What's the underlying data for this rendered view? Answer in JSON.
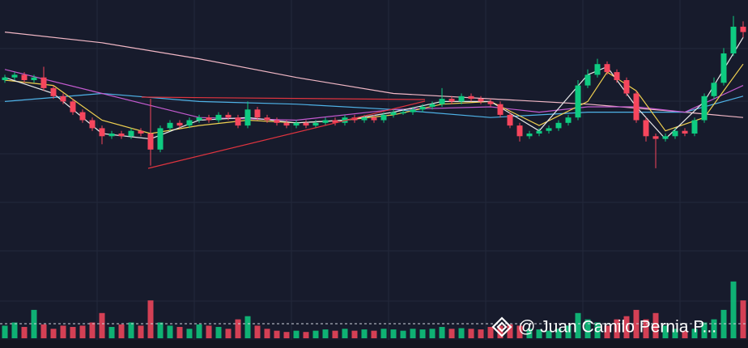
{
  "chart_data": {
    "type": "candlestick",
    "watermark": "@ Juan Camilo Pernia P...",
    "up_color": "#0ecb81",
    "down_color": "#f6465d",
    "ylim": [
      0,
      100
    ],
    "vlim": [
      0,
      100
    ],
    "open": [
      70,
      71,
      72,
      70,
      71,
      67,
      64,
      62,
      58,
      55,
      52,
      49,
      50,
      49,
      51,
      50,
      44,
      52,
      54,
      53,
      55,
      56,
      55,
      57,
      56,
      53,
      59,
      56,
      55,
      54,
      53,
      54,
      53,
      54,
      55,
      54,
      56,
      55,
      56,
      55,
      57,
      58,
      58,
      59,
      60,
      61,
      63,
      62,
      64,
      63,
      62,
      61,
      57,
      53,
      49,
      50,
      51,
      52,
      54,
      56,
      68,
      72,
      76,
      73,
      70,
      65,
      55,
      49,
      48,
      49,
      51,
      50,
      55,
      64,
      69,
      80,
      90
    ],
    "high": [
      72,
      73,
      73,
      72,
      75,
      68,
      65,
      63,
      59,
      56,
      53,
      51,
      51,
      52,
      52,
      63,
      53,
      55,
      55,
      56,
      57,
      57,
      58,
      58,
      57,
      62,
      60,
      57,
      56,
      55,
      55,
      55,
      55,
      56,
      56,
      57,
      57,
      57,
      57,
      58,
      59,
      59,
      60,
      61,
      62,
      67,
      64,
      65,
      65,
      64,
      63,
      62,
      58,
      54,
      51,
      52,
      53,
      55,
      57,
      70,
      74,
      78,
      77,
      74,
      71,
      66,
      56,
      50,
      50,
      52,
      52,
      56,
      65,
      71,
      82,
      94,
      92
    ],
    "low": [
      69,
      70,
      69,
      69,
      66,
      63,
      61,
      57,
      54,
      51,
      46,
      48,
      48,
      48,
      49,
      38,
      43,
      51,
      52,
      52,
      54,
      54,
      54,
      55,
      52,
      52,
      55,
      54,
      53,
      52,
      52,
      52,
      52,
      53,
      53,
      53,
      54,
      54,
      54,
      54,
      56,
      57,
      57,
      58,
      59,
      60,
      61,
      61,
      62,
      61,
      60,
      56,
      52,
      47,
      48,
      49,
      50,
      51,
      53,
      55,
      67,
      71,
      72,
      69,
      64,
      54,
      47,
      37,
      47,
      48,
      49,
      49,
      54,
      63,
      68,
      79,
      86
    ],
    "close": [
      71,
      72,
      70,
      71,
      67,
      64,
      62,
      58,
      55,
      52,
      49,
      50,
      49,
      51,
      50,
      44,
      52,
      54,
      53,
      55,
      56,
      55,
      57,
      56,
      53,
      59,
      56,
      55,
      54,
      53,
      54,
      53,
      54,
      55,
      54,
      56,
      55,
      56,
      55,
      57,
      58,
      58,
      59,
      60,
      61,
      63,
      62,
      64,
      63,
      62,
      61,
      57,
      53,
      49,
      50,
      51,
      52,
      54,
      56,
      68,
      72,
      76,
      73,
      70,
      65,
      55,
      49,
      48,
      49,
      51,
      50,
      55,
      64,
      69,
      80,
      90,
      88
    ],
    "volume": [
      20,
      25,
      18,
      45,
      22,
      15,
      20,
      18,
      20,
      25,
      40,
      18,
      22,
      25,
      20,
      60,
      25,
      20,
      18,
      15,
      22,
      20,
      18,
      15,
      30,
      35,
      20,
      15,
      12,
      10,
      12,
      10,
      12,
      14,
      12,
      15,
      12,
      14,
      12,
      15,
      14,
      12,
      15,
      14,
      15,
      18,
      15,
      16,
      15,
      14,
      18,
      20,
      22,
      20,
      15,
      14,
      12,
      15,
      20,
      40,
      30,
      25,
      20,
      30,
      35,
      45,
      30,
      40,
      20,
      15,
      12,
      15,
      25,
      30,
      45,
      90,
      60
    ],
    "lines": [
      {
        "color": "#f2b8c6",
        "x": [
          0,
          10,
          20,
          30,
          40,
          50,
          60,
          70,
          76
        ],
        "values": [
          88,
          84,
          78,
          71,
          65,
          63,
          61,
          58,
          56
        ]
      },
      {
        "color": "#4fb3e8",
        "x": [
          0,
          10,
          20,
          30,
          40,
          50,
          60,
          70,
          76
        ],
        "values": [
          62,
          65,
          62,
          61,
          59,
          56,
          58,
          58,
          64
        ]
      },
      {
        "color": "#c45bd0",
        "x": [
          0,
          10,
          20,
          30,
          40,
          50,
          55,
          60,
          65,
          70,
          76
        ],
        "values": [
          74,
          65,
          56,
          55,
          59,
          60,
          58,
          60,
          60,
          58,
          68
        ]
      },
      {
        "color": "#f0d050",
        "x": [
          0,
          5,
          10,
          15,
          20,
          25,
          30,
          35,
          40,
          45,
          50,
          55,
          60,
          62,
          65,
          68,
          72,
          76
        ],
        "values": [
          70,
          68,
          55,
          50,
          53,
          55,
          54,
          55,
          57,
          61,
          62,
          53,
          62,
          73,
          66,
          51,
          56,
          76
        ]
      },
      {
        "color": "#e8e8e8",
        "x": [
          0,
          5,
          10,
          15,
          20,
          25,
          30,
          35,
          40,
          45,
          50,
          55,
          60,
          62,
          65,
          68,
          72,
          76
        ],
        "values": [
          71,
          65,
          50,
          48,
          55,
          56,
          54,
          55,
          58,
          62,
          62,
          51,
          72,
          75,
          60,
          48,
          62,
          86
        ]
      }
    ]
  }
}
